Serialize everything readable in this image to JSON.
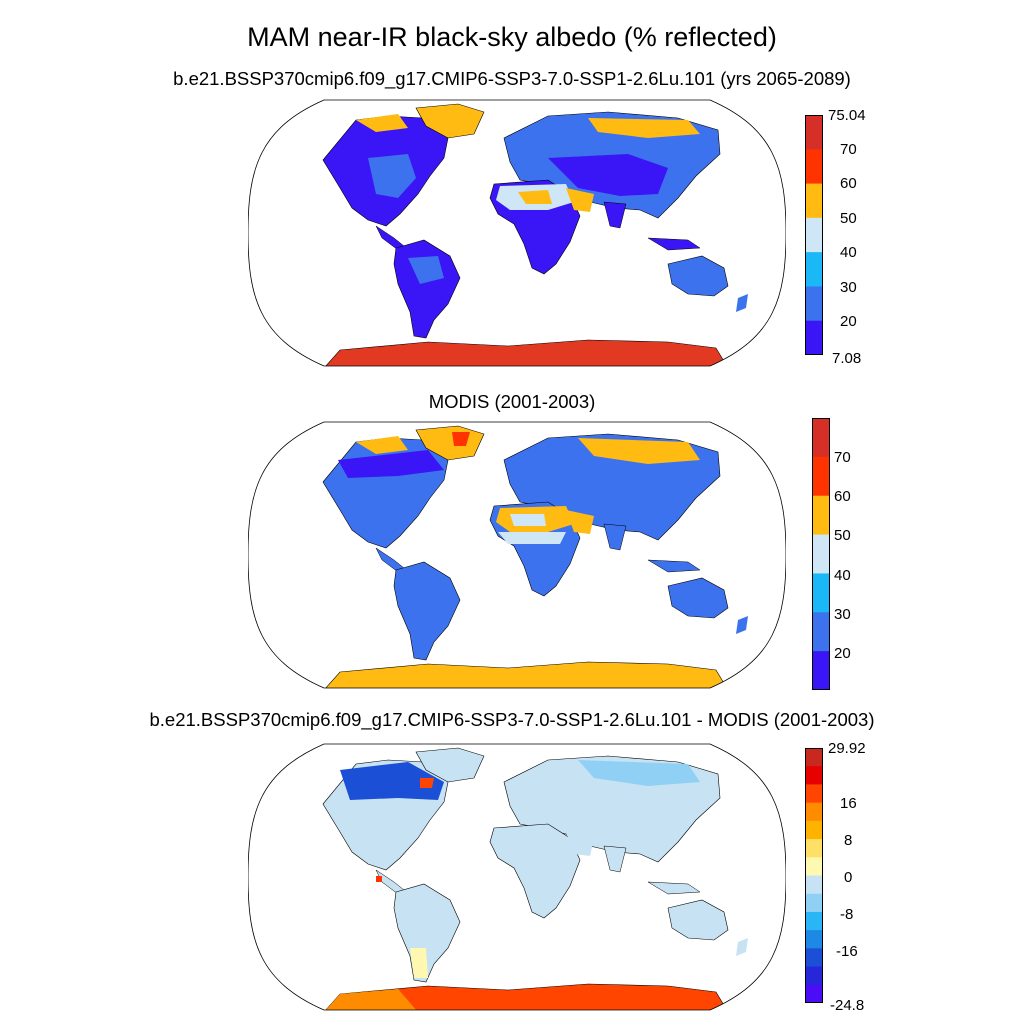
{
  "header": {
    "title": "MAM near-IR black-sky albedo (% reflected)"
  },
  "panels": [
    {
      "title": "b.e21.BSSP370cmip6.f09_g17.CMIP6-SSP3-7.0-SSP1-2.6Lu.101 (yrs 2065-2089)",
      "colorbar": {
        "labels": [
          "75.04",
          "70",
          "60",
          "50",
          "40",
          "30",
          "20",
          "7.08"
        ],
        "colors": [
          "#d62f27",
          "#ff3300",
          "#ffbb11",
          "#cfe6f6",
          "#1ab8f7",
          "#3d72ee",
          "#3a15f5"
        ]
      }
    },
    {
      "title": "MODIS (2001-2003)",
      "colorbar": {
        "labels": [
          "70",
          "60",
          "50",
          "40",
          "30",
          "20"
        ],
        "colors": [
          "#d62f27",
          "#ff3300",
          "#ffbb11",
          "#cfe6f6",
          "#1ab8f7",
          "#3d72ee",
          "#3a15f5"
        ]
      }
    },
    {
      "title": "b.e21.BSSP370cmip6.f09_g17.CMIP6-SSP3-7.0-SSP1-2.6Lu.101 - MODIS (2001-2003)",
      "colorbar": {
        "labels": [
          "29.92",
          "16",
          "8",
          "0",
          "-8",
          "-16",
          "-24.8"
        ],
        "colors": [
          "#c8281e",
          "#e60000",
          "#ff4500",
          "#ff8c00",
          "#ffb300",
          "#ffe066",
          "#fff8b0",
          "#c6e2f3",
          "#8fd0f4",
          "#29b6f6",
          "#1e88e5",
          "#1a4fd6",
          "#2727d9",
          "#4a0df5"
        ]
      }
    }
  ]
}
